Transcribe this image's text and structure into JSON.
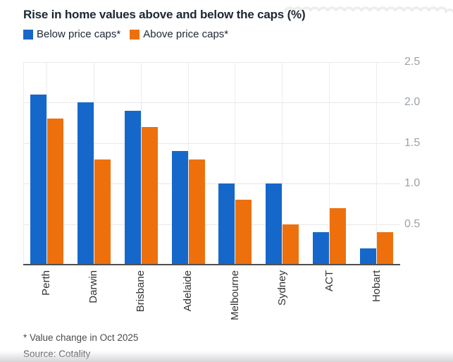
{
  "title": "Rise in home values above and below the caps (%)",
  "legend": {
    "items": [
      {
        "label": "Below price caps*",
        "color": "#1568c9"
      },
      {
        "label": "Above price caps*",
        "color": "#ee700d"
      }
    ]
  },
  "chart_data": {
    "type": "bar",
    "categories": [
      "Perth",
      "Darwin",
      "Brisbane",
      "Adelaide",
      "Melbourne",
      "Sydney",
      "ACT",
      "Hobart"
    ],
    "series": [
      {
        "name": "Below price caps*",
        "color": "#1568c9",
        "values": [
          2.1,
          2.0,
          1.9,
          1.4,
          1.0,
          1.0,
          0.4,
          0.2
        ]
      },
      {
        "name": "Above price caps*",
        "color": "#ee700d",
        "values": [
          1.8,
          1.3,
          1.7,
          1.3,
          0.8,
          0.5,
          0.7,
          0.4
        ]
      }
    ],
    "title": "Rise in home values above and below the caps (%)",
    "xlabel": "",
    "ylabel": "",
    "ylim": [
      0,
      2.5
    ],
    "yticks": [
      0.5,
      1.0,
      1.5,
      2.0,
      2.5
    ],
    "tick_labels": [
      "0.5",
      "1.0",
      "1.5",
      "2.0",
      "2.5"
    ],
    "grid": true,
    "legend_position": "top-left",
    "value_axis_side": "right",
    "category_label_rotation": -90
  },
  "footer": {
    "footnote": "* Value change in Oct 2025",
    "source": "Source: Cotality"
  },
  "colors": {
    "below": "#1568c9",
    "above": "#ee700d",
    "gridline": "#e8e8e8",
    "axis_line": "#4f4f4f",
    "tick_text": "#9aa2aa",
    "title_text": "#1d2733"
  }
}
